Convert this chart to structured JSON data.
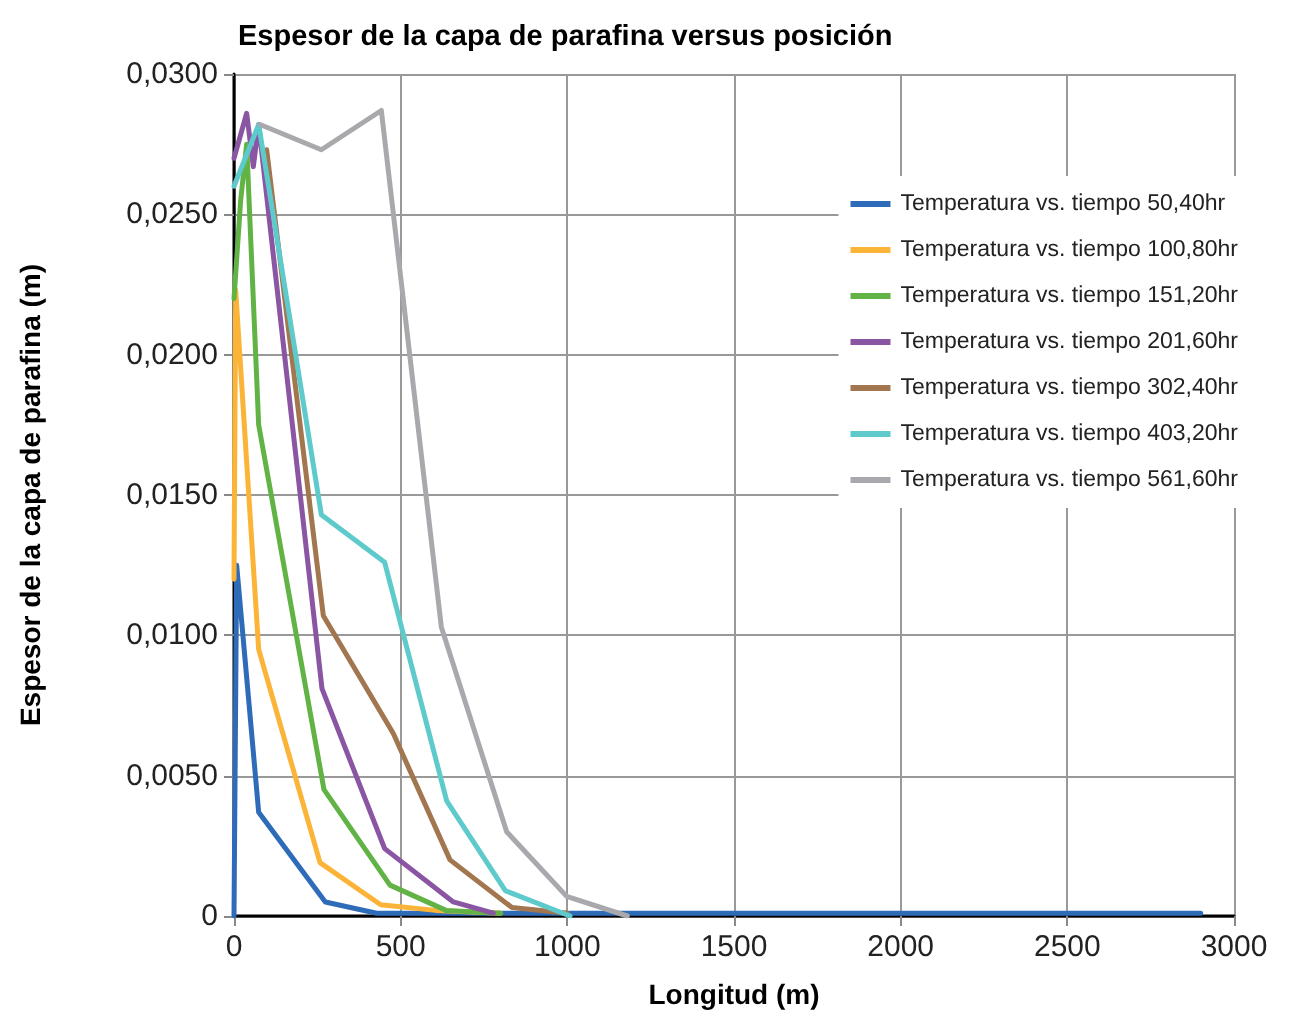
{
  "chart_data": {
    "type": "line",
    "title": "Espesor de la capa de parafina versus posición",
    "xlabel": "Longitud (m)",
    "ylabel": "Espesor de la capa de parafina (m)",
    "xlim": [
      0,
      3000
    ],
    "xticks": [
      0,
      500,
      1000,
      1500,
      2000,
      2500,
      3000
    ],
    "ylim": [
      0,
      0.03
    ],
    "yticks": [
      {
        "value": 0,
        "label": "0"
      },
      {
        "value": 0.005,
        "label": "0,0050"
      },
      {
        "value": 0.01,
        "label": "0,0100"
      },
      {
        "value": 0.015,
        "label": "0,0150"
      },
      {
        "value": 0.02,
        "label": "0,0200"
      },
      {
        "value": 0.025,
        "label": "0,0250"
      },
      {
        "value": 0.03,
        "label": "0,0300"
      }
    ],
    "grid": true,
    "legend": "right",
    "marker": "none",
    "line_style": "solid",
    "series": [
      {
        "name": "Temperatura vs. tiempo 50,40hr",
        "color": "#2e6bb8",
        "x": [
          0,
          8,
          74,
          274,
          428,
          1000,
          2900
        ],
        "values": [
          0,
          0.0125,
          0.0037,
          0.0005,
          0.0001,
          0.0001,
          0.0001
        ]
      },
      {
        "name": "Temperatura vs. tiempo 100,80hr",
        "color": "#fbb437",
        "x": [
          0,
          5,
          74,
          258,
          440,
          605,
          800
        ],
        "values": [
          0.012,
          0.0223,
          0.0095,
          0.0019,
          0.0004,
          0.0002,
          0.0001
        ]
      },
      {
        "name": "Temperatura vs. tiempo 151,20hr",
        "color": "#62b346",
        "x": [
          0,
          20,
          38,
          74,
          270,
          468,
          636,
          800
        ],
        "values": [
          0.022,
          0.0255,
          0.0275,
          0.0175,
          0.0045,
          0.0011,
          0.0002,
          0.0001
        ]
      },
      {
        "name": "Temperatura vs. tiempo 201,60hr",
        "color": "#8a55a3",
        "x": [
          0,
          38,
          58,
          74,
          264,
          452,
          658,
          778
        ],
        "values": [
          0.027,
          0.0286,
          0.0267,
          0.0282,
          0.0081,
          0.0024,
          0.0005,
          0.0001
        ]
      },
      {
        "name": "Temperatura vs. tiempo 302,40hr",
        "color": "#a2764f",
        "x": [
          98,
          268,
          478,
          648,
          834,
          1000
        ],
        "values": [
          0.0273,
          0.0107,
          0.0065,
          0.002,
          0.0003,
          0.0001
        ]
      },
      {
        "name": "Temperatura vs. tiempo 403,20hr",
        "color": "#5ecacb",
        "x": [
          0,
          74,
          262,
          452,
          638,
          814,
          1008
        ],
        "values": [
          0.026,
          0.0282,
          0.0143,
          0.0126,
          0.0041,
          0.0009,
          0
        ]
      },
      {
        "name": "Temperatura vs. tiempo 561,60hr",
        "color": "#a9a9ad",
        "x": [
          78,
          262,
          442,
          622,
          818,
          998,
          1180
        ],
        "values": [
          0.0282,
          0.0273,
          0.0287,
          0.0103,
          0.003,
          0.0007,
          0
        ]
      }
    ]
  }
}
